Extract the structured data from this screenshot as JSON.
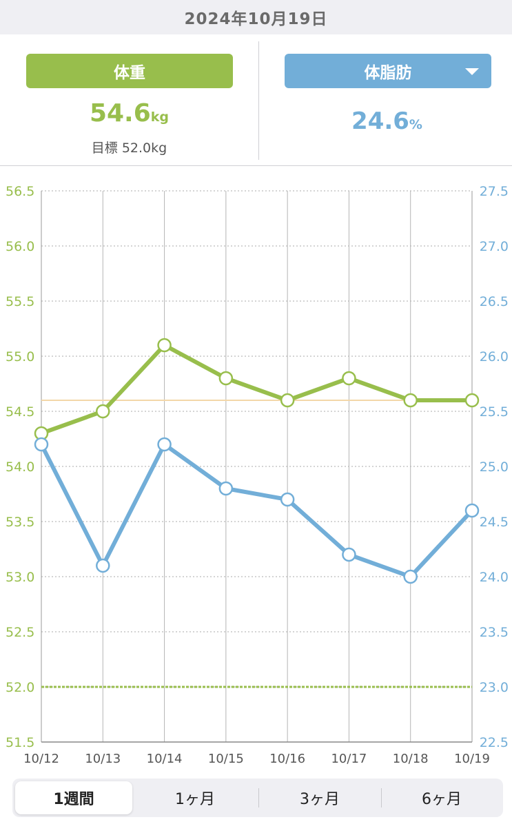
{
  "header": {
    "date": "2024年10月19日"
  },
  "weight": {
    "button_label": "体重",
    "value": "54.6",
    "unit": "kg",
    "target_label": "目標 52.0kg",
    "color": "#98be4c"
  },
  "body_fat": {
    "button_label": "体脂肪",
    "value": "24.6",
    "unit": "%",
    "color": "#72aed8",
    "dropdown_icon": "caret-down-icon"
  },
  "chart_data": {
    "type": "line",
    "x": [
      "10/12",
      "10/13",
      "10/14",
      "10/15",
      "10/16",
      "10/17",
      "10/18",
      "10/19"
    ],
    "series": [
      {
        "name": "体重",
        "axis": "left",
        "values": [
          54.3,
          54.5,
          55.1,
          54.8,
          54.6,
          54.8,
          54.6,
          54.6
        ],
        "color": "#98be4c"
      },
      {
        "name": "体脂肪",
        "axis": "right",
        "values": [
          25.2,
          24.1,
          25.2,
          24.8,
          24.7,
          24.2,
          24.0,
          24.6
        ],
        "color": "#72aed8"
      }
    ],
    "y_left": {
      "min": 51.5,
      "max": 56.5,
      "ticks": [
        "56.5",
        "56.0",
        "55.5",
        "55.0",
        "54.5",
        "54.0",
        "53.5",
        "53.0",
        "52.5",
        "52.0",
        "51.5"
      ]
    },
    "y_right": {
      "min": 22.5,
      "max": 27.5,
      "ticks": [
        "27.5",
        "27.0",
        "26.5",
        "26.0",
        "25.5",
        "25.0",
        "24.5",
        "24.0",
        "23.5",
        "23.0",
        "22.5"
      ]
    },
    "reference_lines": [
      {
        "axis": "left",
        "value": 54.6,
        "color": "#f3d7a8",
        "style": "solid"
      },
      {
        "axis": "left",
        "value": 52.0,
        "color": "#98be4c",
        "style": "dashed"
      }
    ],
    "grid": true
  },
  "range_tabs": [
    {
      "label": "1週間",
      "active": true
    },
    {
      "label": "1ヶ月",
      "active": false
    },
    {
      "label": "3ヶ月",
      "active": false
    },
    {
      "label": "6ヶ月",
      "active": false
    }
  ]
}
